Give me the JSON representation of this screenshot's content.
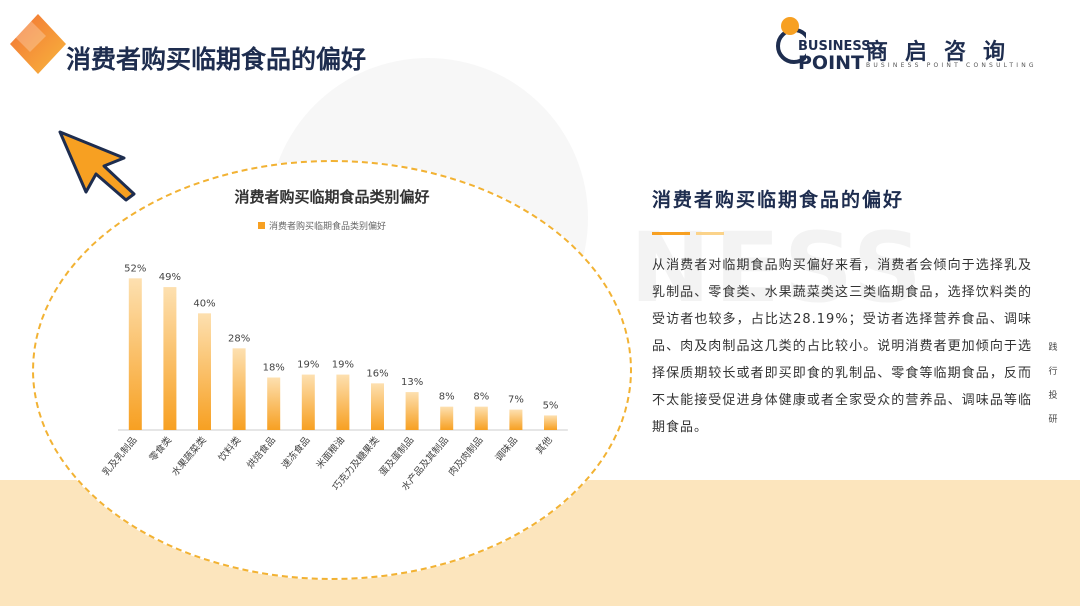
{
  "page": {
    "title": "消费者购买临期食品的偏好",
    "side_title": "消费者购买临期食品的偏好",
    "side_body": "从消费者对临期食品购买偏好来看，消费者会倾向于选择乳及乳制品、零食类、水果蔬菜类这三类临期食品，选择饮料类的受访者也较多，占比达28.19%；受访者选择营养食品、调味品、肉及肉制品这几类的占比较小。说明消费者更加倾向于选择保质期较长或者即买即食的乳制品、零食等临期食品，反而不太能接受促进身体健康或者全家受众的营养品、调味品等临期食品。",
    "vertical_text": "践行投研",
    "watermark": "NESS"
  },
  "logo": {
    "en_line1": "BUSINESS",
    "en_line2": "POINT",
    "cn": "商启咨询",
    "sub": "BUSINESS POINT CONSULTING"
  },
  "colors": {
    "accent": "#f7a022",
    "accent_light": "#fde0b0",
    "navy": "#1e2d4f",
    "band": "#fce5bd"
  },
  "chart_data": {
    "type": "bar",
    "title": "消费者购买临期食品类别偏好",
    "legend": [
      "消费者购买临期食品类别偏好"
    ],
    "legend_position": "top",
    "categories": [
      "乳及乳制品",
      "零食类",
      "水果蔬菜类",
      "饮料类",
      "烘焙食品",
      "速冻食品",
      "米面粮油",
      "巧克力及糖果类",
      "蛋及蛋制品",
      "水产品及其制品",
      "肉及肉制品",
      "调味品",
      "其他"
    ],
    "series": [
      {
        "name": "消费者购买临期食品类别偏好",
        "values": [
          52,
          49,
          40,
          28,
          18,
          19,
          19,
          16,
          13,
          8,
          8,
          7,
          5
        ]
      }
    ],
    "value_labels": [
      "52%",
      "49%",
      "40%",
      "28%",
      "18%",
      "19%",
      "19%",
      "16%",
      "13%",
      "8%",
      "8%",
      "7%",
      "5%"
    ],
    "ylim": [
      0,
      60
    ],
    "grid": false
  }
}
